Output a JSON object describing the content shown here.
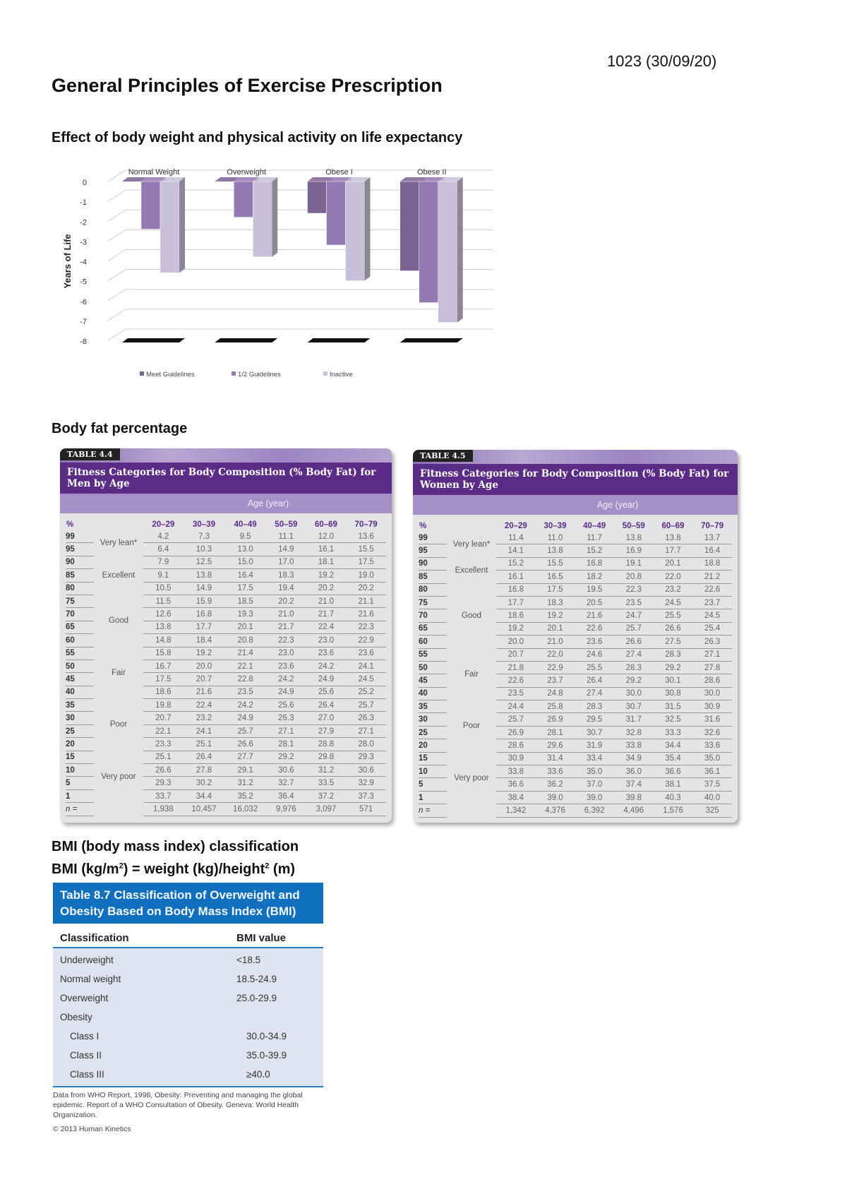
{
  "doc_id": "1023 (30/09/20)",
  "title": "General Principles of Exercise Prescription",
  "section1": "Effect of body weight and physical activity on life expectancy",
  "chart_data": {
    "type": "bar",
    "categories": [
      "Normal Weight",
      "Overweight",
      "Obese I",
      "Obese II"
    ],
    "series": [
      {
        "name": "Meet Guidelines",
        "values": [
          0,
          0,
          -1.6,
          -4.5
        ],
        "color": "#7b6393"
      },
      {
        "name": "1/2 Guidelines",
        "values": [
          -2.4,
          -1.8,
          -3.2,
          -6.1
        ],
        "color": "#9479b3"
      },
      {
        "name": "Inactive",
        "values": [
          -4.6,
          -3.8,
          -5.0,
          -7.1
        ],
        "color": "#c8c0d8"
      }
    ],
    "ylabel": "Years of Life",
    "yticks": [
      "0",
      "-1",
      "-2",
      "-3",
      "-4",
      "-5",
      "-6",
      "-7",
      "-8"
    ],
    "ylim": [
      -8,
      0
    ],
    "grid": true,
    "legend": "bottom",
    "style": "3d"
  },
  "section2": "Body fat percentage",
  "men_table": {
    "tag": "TABLE 4.4",
    "caption": "Fitness Categories for Body Composition (% Body Fat) for Men by Age",
    "age_header": "Age (year)",
    "pct_header": "%",
    "age_groups": [
      "20–29",
      "30–39",
      "40–49",
      "50–59",
      "60–69",
      "70–79"
    ],
    "rows": [
      {
        "pct": "99",
        "cat": "Very lean*",
        "values": [
          "4.2",
          "7.3",
          "9.5",
          "11.1",
          "12.0",
          "13.6"
        ]
      },
      {
        "pct": "95",
        "cat": "",
        "values": [
          "6.4",
          "10.3",
          "13.0",
          "14.9",
          "16.1",
          "15.5"
        ]
      },
      {
        "pct": "90",
        "cat": "Excellent",
        "values": [
          "7.9",
          "12.5",
          "15.0",
          "17.0",
          "18.1",
          "17.5"
        ]
      },
      {
        "pct": "85",
        "cat": "",
        "values": [
          "9.1",
          "13.8",
          "16.4",
          "18.3",
          "19.2",
          "19.0"
        ]
      },
      {
        "pct": "80",
        "cat": "",
        "values": [
          "10.5",
          "14.9",
          "17.5",
          "19.4",
          "20.2",
          "20.2"
        ]
      },
      {
        "pct": "75",
        "cat": "Good",
        "values": [
          "11.5",
          "15.9",
          "18.5",
          "20.2",
          "21.0",
          "21.1"
        ]
      },
      {
        "pct": "70",
        "cat": "",
        "values": [
          "12.6",
          "16.8",
          "19.3",
          "21.0",
          "21.7",
          "21.6"
        ]
      },
      {
        "pct": "65",
        "cat": "",
        "values": [
          "13.8",
          "17.7",
          "20.1",
          "21.7",
          "22.4",
          "22.3"
        ]
      },
      {
        "pct": "60",
        "cat": "",
        "values": [
          "14.8",
          "18.4",
          "20.8",
          "22.3",
          "23.0",
          "22.9"
        ]
      },
      {
        "pct": "55",
        "cat": "Fair",
        "values": [
          "15.8",
          "19.2",
          "21.4",
          "23.0",
          "23.6",
          "23.6"
        ]
      },
      {
        "pct": "50",
        "cat": "",
        "values": [
          "16.7",
          "20.0",
          "22.1",
          "23.6",
          "24.2",
          "24.1"
        ]
      },
      {
        "pct": "45",
        "cat": "",
        "values": [
          "17.5",
          "20.7",
          "22.8",
          "24.2",
          "24.9",
          "24.5"
        ]
      },
      {
        "pct": "40",
        "cat": "",
        "values": [
          "18.6",
          "21.6",
          "23.5",
          "24.9",
          "25.6",
          "25.2"
        ]
      },
      {
        "pct": "35",
        "cat": "Poor",
        "values": [
          "19.8",
          "22.4",
          "24.2",
          "25.6",
          "26.4",
          "25.7"
        ]
      },
      {
        "pct": "30",
        "cat": "",
        "values": [
          "20.7",
          "23.2",
          "24.9",
          "26.3",
          "27.0",
          "26.3"
        ]
      },
      {
        "pct": "25",
        "cat": "",
        "values": [
          "22.1",
          "24.1",
          "25.7",
          "27.1",
          "27.9",
          "27.1"
        ]
      },
      {
        "pct": "20",
        "cat": "",
        "values": [
          "23.3",
          "25.1",
          "26.6",
          "28.1",
          "28.8",
          "28.0"
        ]
      },
      {
        "pct": "15",
        "cat": "Very poor",
        "values": [
          "25.1",
          "26.4",
          "27.7",
          "29.2",
          "29.8",
          "29.3"
        ]
      },
      {
        "pct": "10",
        "cat": "",
        "values": [
          "26.6",
          "27.8",
          "29.1",
          "30.6",
          "31.2",
          "30.6"
        ]
      },
      {
        "pct": "5",
        "cat": "",
        "values": [
          "29.3",
          "30.2",
          "31.2",
          "32.7",
          "33.5",
          "32.9"
        ]
      },
      {
        "pct": "1",
        "cat": "",
        "values": [
          "33.7",
          "34.4",
          "35.2",
          "36.4",
          "37.2",
          "37.3"
        ]
      },
      {
        "pct": "n =",
        "cat": "",
        "values": [
          "1,938",
          "10,457",
          "16,032",
          "9,976",
          "3,097",
          "571"
        ]
      }
    ],
    "groups": [
      [
        0,
        2,
        "Very lean*"
      ],
      [
        2,
        5,
        "Excellent"
      ],
      [
        5,
        9,
        "Good"
      ],
      [
        9,
        13,
        "Fair"
      ],
      [
        13,
        17,
        "Poor"
      ],
      [
        17,
        21,
        "Very poor"
      ]
    ]
  },
  "women_table": {
    "tag": "TABLE 4.5",
    "caption": "Fitness Categories for Body Composition (% Body Fat) for Women by Age",
    "age_header": "Age (year)",
    "pct_header": "%",
    "age_groups": [
      "20–29",
      "30–39",
      "40–49",
      "50–59",
      "60–69",
      "70–79"
    ],
    "rows": [
      {
        "pct": "99",
        "values": [
          "11.4",
          "11.0",
          "11.7",
          "13.8",
          "13.8",
          "13.7"
        ]
      },
      {
        "pct": "95",
        "values": [
          "14.1",
          "13.8",
          "15.2",
          "16.9",
          "17.7",
          "16.4"
        ]
      },
      {
        "pct": "90",
        "values": [
          "15.2",
          "15.5",
          "16.8",
          "19.1",
          "20.1",
          "18.8"
        ]
      },
      {
        "pct": "85",
        "values": [
          "16.1",
          "16.5",
          "18.2",
          "20.8",
          "22.0",
          "21.2"
        ]
      },
      {
        "pct": "80",
        "values": [
          "16.8",
          "17.5",
          "19.5",
          "22.3",
          "23.2",
          "22.6"
        ]
      },
      {
        "pct": "75",
        "values": [
          "17.7",
          "18.3",
          "20.5",
          "23.5",
          "24.5",
          "23.7"
        ]
      },
      {
        "pct": "70",
        "values": [
          "18.6",
          "19.2",
          "21.6",
          "24.7",
          "25.5",
          "24.5"
        ]
      },
      {
        "pct": "65",
        "values": [
          "19.2",
          "20.1",
          "22.6",
          "25.7",
          "26.6",
          "25.4"
        ]
      },
      {
        "pct": "60",
        "values": [
          "20.0",
          "21.0",
          "23.6",
          "26.6",
          "27.5",
          "26.3"
        ]
      },
      {
        "pct": "55",
        "values": [
          "20.7",
          "22.0",
          "24.6",
          "27.4",
          "28.3",
          "27.1"
        ]
      },
      {
        "pct": "50",
        "values": [
          "21.8",
          "22.9",
          "25.5",
          "28.3",
          "29.2",
          "27.8"
        ]
      },
      {
        "pct": "45",
        "values": [
          "22.6",
          "23.7",
          "26.4",
          "29.2",
          "30.1",
          "28.6"
        ]
      },
      {
        "pct": "40",
        "values": [
          "23.5",
          "24.8",
          "27.4",
          "30.0",
          "30.8",
          "30.0"
        ]
      },
      {
        "pct": "35",
        "values": [
          "24.4",
          "25.8",
          "28.3",
          "30.7",
          "31.5",
          "30.9"
        ]
      },
      {
        "pct": "30",
        "values": [
          "25.7",
          "26.9",
          "29.5",
          "31.7",
          "32.5",
          "31.6"
        ]
      },
      {
        "pct": "25",
        "values": [
          "26.9",
          "28.1",
          "30.7",
          "32.8",
          "33.3",
          "32.6"
        ]
      },
      {
        "pct": "20",
        "values": [
          "28.6",
          "29.6",
          "31.9",
          "33.8",
          "34.4",
          "33.6"
        ]
      },
      {
        "pct": "15",
        "values": [
          "30.9",
          "31.4",
          "33.4",
          "34.9",
          "35.4",
          "35.0"
        ]
      },
      {
        "pct": "10",
        "values": [
          "33.8",
          "33.6",
          "35.0",
          "36.0",
          "36.6",
          "36.1"
        ]
      },
      {
        "pct": "5",
        "values": [
          "36.6",
          "36.2",
          "37.0",
          "37.4",
          "38.1",
          "37.5"
        ]
      },
      {
        "pct": "1",
        "values": [
          "38.4",
          "39.0",
          "39.0",
          "39.8",
          "40.3",
          "40.0"
        ]
      },
      {
        "pct": "n =",
        "values": [
          "1,342",
          "4,376",
          "6,392",
          "4,496",
          "1,576",
          "325"
        ]
      }
    ],
    "groups": [
      [
        0,
        2,
        "Very lean*"
      ],
      [
        2,
        4,
        "Excellent"
      ],
      [
        4,
        9,
        "Good"
      ],
      [
        9,
        13,
        "Fair"
      ],
      [
        13,
        17,
        "Poor"
      ],
      [
        17,
        21,
        "Very poor"
      ]
    ]
  },
  "section3_line1": "BMI (body mass index) classification",
  "section3_line2_a": "BMI (kg/m",
  "section3_line2_b": ") = weight (kg)/height",
  "section3_line2_c": " (m)",
  "sup": "2",
  "bmi_table": {
    "caption": "Table 8.7   Classification of Overweight and Obesity Based on Body Mass Index (BMI)",
    "col1": "Classification",
    "col2": "BMI value",
    "rows": [
      {
        "label": "Underweight",
        "value": "<18.5",
        "indent": false
      },
      {
        "label": "Normal weight",
        "value": "18.5-24.9",
        "indent": false
      },
      {
        "label": "Overweight",
        "value": "25.0-29.9",
        "indent": false
      },
      {
        "label": "Obesity",
        "value": "",
        "indent": false
      },
      {
        "label": "Class I",
        "value": "30.0-34.9",
        "indent": true
      },
      {
        "label": "Class II",
        "value": "35.0-39.9",
        "indent": true
      },
      {
        "label": "Class III",
        "value": "≥40.0",
        "indent": true
      }
    ],
    "note": "Data from WHO Report, 1998, Obesity: Preventing and managing the global epidemic. Report of a WHO Consultation of Obesity. Geneva: World Health Organization.",
    "copyright": "© 2013 Human Kinetics"
  }
}
